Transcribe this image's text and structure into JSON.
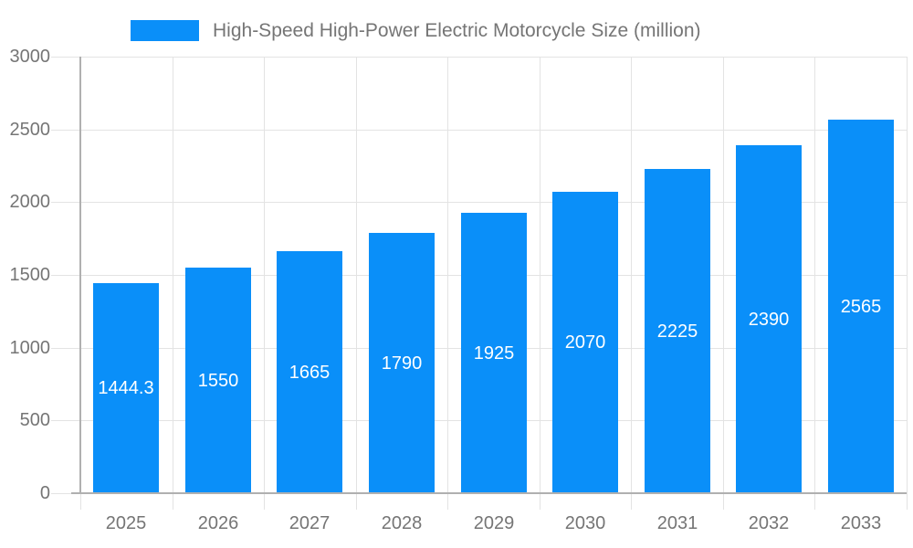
{
  "chart_data": {
    "type": "bar",
    "title": "High-Speed High-Power Electric Motorcycle Size (million)",
    "legend_entries": [
      "High-Speed High-Power Electric Motorcycle Size (million)"
    ],
    "legend_position": "top",
    "categories": [
      "2025",
      "2026",
      "2027",
      "2028",
      "2029",
      "2030",
      "2031",
      "2032",
      "2033"
    ],
    "series": [
      {
        "name": "High-Speed High-Power Electric Motorcycle Size (million)",
        "values": [
          1444.3,
          1550,
          1665,
          1790,
          1925,
          2070,
          2225,
          2390,
          2565
        ]
      }
    ],
    "bar_labels": [
      "1444.3",
      "1550",
      "1665",
      "1790",
      "1925",
      "2070",
      "2225",
      "2390",
      "2565"
    ],
    "bar_label_position": "inside-center",
    "xlabel": "",
    "ylabel": "",
    "ylim": [
      0,
      3000
    ],
    "yticks": [
      0,
      500,
      1000,
      1500,
      2000,
      2500,
      3000
    ],
    "grid": true
  },
  "colors": {
    "bar": "#0A8FF9",
    "grid_line": "#e3e3e3",
    "axis_line": "#b0b0b0",
    "axis_text": "#757575",
    "legend_text": "#757575",
    "bar_label_text": "#ffffff",
    "background": "#ffffff"
  }
}
